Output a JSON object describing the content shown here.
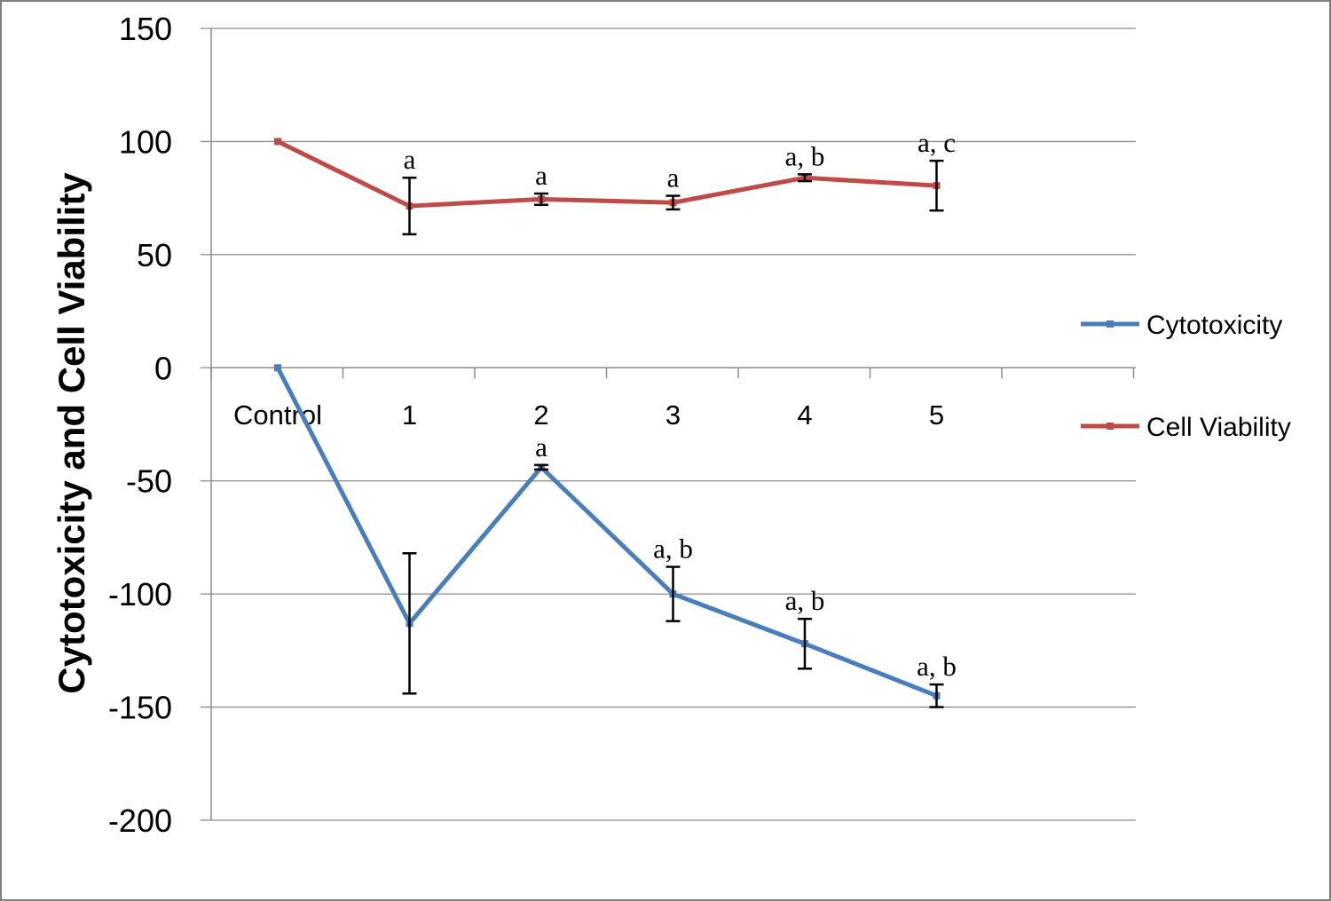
{
  "chart_data": {
    "type": "line",
    "title": "",
    "xlabel": "",
    "ylabel": "Cytotoxicity and Cell Viability",
    "categories": [
      "Control",
      "1",
      "2",
      "3",
      "4",
      "5"
    ],
    "ylim": [
      -200,
      150
    ],
    "yticks": [
      150,
      100,
      50,
      0,
      -50,
      -100,
      -150,
      -200
    ],
    "ytick_labels": [
      "150",
      "100",
      "50",
      "0",
      "-50",
      "-100",
      "-150",
      "-200"
    ],
    "grid": true,
    "legend_position": "right",
    "series": [
      {
        "name": "Cytotoxicity",
        "color": "#4a7ebb",
        "values": [
          0,
          -113,
          -44,
          -100,
          -122,
          -145
        ],
        "errors": [
          0,
          31,
          1,
          12,
          11,
          5
        ],
        "annotations": [
          "",
          "",
          "a",
          "a, b",
          "a, b",
          "a, b"
        ]
      },
      {
        "name": "Cell Viability",
        "color": "#be4b48",
        "values": [
          100,
          71.5,
          74.5,
          73,
          84,
          80.5
        ],
        "errors": [
          0,
          12.5,
          2.5,
          3,
          1.5,
          11
        ],
        "annotations": [
          "",
          "a",
          "a",
          "a",
          "a, b",
          "a, c"
        ]
      }
    ]
  }
}
